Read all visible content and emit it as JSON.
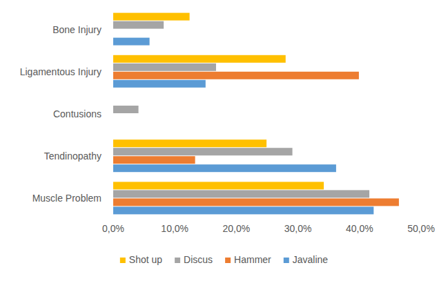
{
  "chart_data": {
    "type": "bar",
    "orientation": "horizontal",
    "categories": [
      "Bone Injury",
      "Ligamentous Injury",
      "Contusions",
      "Tendinopathy",
      "Muscle Problem"
    ],
    "series": [
      {
        "name": "Javaline",
        "color": "#5b9bd5",
        "values": [
          5.9,
          15.0,
          0,
          36.2,
          42.3
        ]
      },
      {
        "name": "Hammer",
        "color": "#ed7d31",
        "values": [
          0,
          39.9,
          0,
          13.3,
          46.4
        ]
      },
      {
        "name": "Discus",
        "color": "#a5a5a5",
        "values": [
          8.2,
          16.7,
          4.1,
          29.1,
          41.6
        ]
      },
      {
        "name": "Shot up",
        "color": "#ffc000",
        "values": [
          12.4,
          28.0,
          0,
          24.9,
          34.2
        ]
      }
    ],
    "xlim": [
      0,
      50
    ],
    "xticks": [
      {
        "value": 0,
        "label": "0,0%"
      },
      {
        "value": 10,
        "label": "10,0%"
      },
      {
        "value": 20,
        "label": "20,0%"
      },
      {
        "value": 30,
        "label": "30,0%"
      },
      {
        "value": 40,
        "label": "40,0%"
      },
      {
        "value": 50,
        "label": "50,0%"
      }
    ],
    "grid": false,
    "legend": "bottom"
  }
}
